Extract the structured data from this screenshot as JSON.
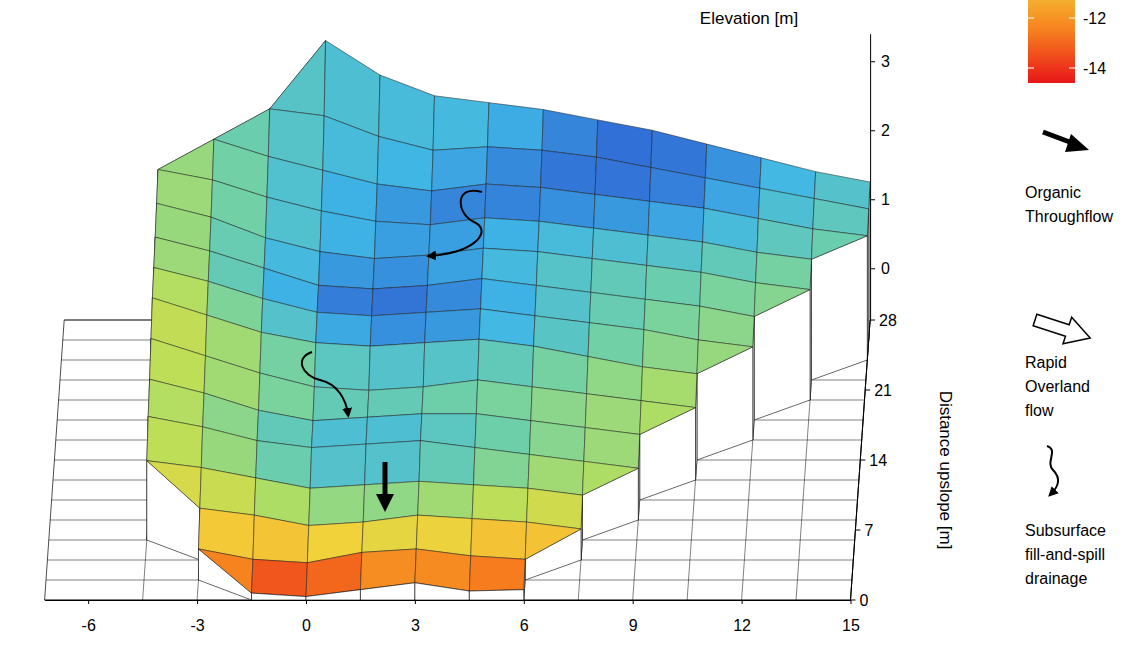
{
  "chart_data": {
    "type": "surface",
    "zlabel": "Elevation [m]",
    "ylabel": "Distance upslope [m]",
    "xlim": [
      -7.2,
      15
    ],
    "xticks": [
      -6,
      -3,
      0,
      3,
      6,
      9,
      12,
      15
    ],
    "ylim": [
      0,
      28
    ],
    "yticks": [
      0,
      7,
      14,
      21,
      28
    ],
    "zlim": [
      -0.75,
      3.4
    ],
    "zticks": [
      0,
      1,
      2,
      3
    ],
    "x": [
      -4.5,
      -3,
      -1.5,
      0,
      1.5,
      3,
      4.5,
      6,
      7.5,
      9,
      10.5,
      12,
      13.5,
      15
    ],
    "y": [
      0,
      2,
      4,
      6,
      8,
      10,
      12,
      14,
      16,
      18,
      20,
      22,
      24,
      26,
      28
    ],
    "z": [
      [
        null,
        null,
        -0.65,
        -0.7,
        -0.6,
        -0.5,
        -0.62,
        -0.6,
        null,
        null,
        null,
        null,
        null,
        null
      ],
      [
        null,
        -0.3,
        -0.45,
        -0.5,
        -0.35,
        -0.3,
        -0.4,
        -0.45,
        null,
        null,
        null,
        null,
        null,
        null
      ],
      [
        null,
        0.0,
        -0.1,
        -0.25,
        -0.2,
        -0.1,
        -0.15,
        -0.2,
        -0.3,
        null,
        null,
        null,
        null,
        null
      ],
      [
        0.4,
        0.3,
        0.15,
        0.0,
        0.05,
        0.1,
        0.05,
        0.0,
        -0.1,
        null,
        null,
        null,
        null,
        null
      ],
      [
        0.75,
        0.6,
        0.4,
        0.3,
        0.35,
        0.4,
        0.3,
        0.2,
        0.1,
        0.0,
        null,
        null,
        null,
        null
      ],
      [
        1.0,
        0.8,
        0.55,
        0.4,
        0.45,
        0.5,
        0.5,
        0.4,
        0.3,
        0.2,
        null,
        null,
        null,
        null
      ],
      [
        1.3,
        1.05,
        0.8,
        0.6,
        0.55,
        0.6,
        0.7,
        0.6,
        0.5,
        0.4,
        0.3,
        null,
        null,
        null
      ],
      [
        1.6,
        1.35,
        1.1,
        0.95,
        0.9,
        0.95,
        1.0,
        0.9,
        0.75,
        0.6,
        0.5,
        null,
        null,
        null
      ],
      [
        1.75,
        1.55,
        1.3,
        1.1,
        1.05,
        1.1,
        1.15,
        1.05,
        0.95,
        0.85,
        0.7,
        0.6,
        null,
        null
      ],
      [
        1.9,
        1.7,
        1.45,
        1.2,
        1.15,
        1.2,
        1.3,
        1.2,
        1.1,
        1.0,
        0.9,
        0.75,
        null,
        null
      ],
      [
        2.1,
        1.9,
        1.6,
        1.4,
        1.3,
        1.35,
        1.45,
        1.4,
        1.3,
        1.2,
        1.1,
        0.95,
        0.85,
        null
      ],
      [
        2.3,
        2.15,
        1.9,
        1.7,
        1.55,
        1.5,
        1.6,
        1.55,
        1.45,
        1.35,
        1.25,
        1.1,
        1.0,
        null
      ],
      [
        null,
        2.45,
        2.2,
        2.0,
        1.8,
        1.7,
        1.8,
        1.75,
        1.65,
        1.55,
        1.45,
        1.3,
        1.15,
        1.05
      ],
      [
        null,
        null,
        2.6,
        2.5,
        2.2,
        2.0,
        2.05,
        2.0,
        1.9,
        1.75,
        1.6,
        1.45,
        1.3,
        1.15
      ],
      [
        null,
        null,
        null,
        3.3,
        2.8,
        2.5,
        2.4,
        2.3,
        2.15,
        2.0,
        1.8,
        1.6,
        1.4,
        1.25
      ]
    ],
    "color_values": [
      [
        null,
        null,
        -14.3,
        -14.5,
        -13.5,
        -12.5,
        -13.2,
        -12.8,
        null,
        null,
        null,
        null,
        null,
        null
      ],
      [
        null,
        -11,
        -12,
        -12.5,
        -11.5,
        -11.2,
        -12,
        -12.3,
        null,
        null,
        null,
        null,
        null,
        null
      ],
      [
        null,
        -10,
        -9.5,
        -9,
        -8.5,
        -8.5,
        -9,
        -9.8,
        -10.3,
        null,
        null,
        null,
        null,
        null
      ],
      [
        -9.5,
        -8.5,
        -7.5,
        -6,
        -5.5,
        -6,
        -7,
        -8,
        -8.5,
        null,
        null,
        null,
        null,
        null
      ],
      [
        -8.5,
        -7.5,
        -6,
        -4.5,
        -4,
        -4.5,
        -5.5,
        -6.5,
        -7.5,
        -8,
        null,
        null,
        null,
        null
      ],
      [
        -8.5,
        -8,
        -6.5,
        -5.5,
        -5,
        -5.5,
        -6,
        -6.5,
        -7,
        -7.5,
        null,
        null,
        null,
        null
      ],
      [
        -9,
        -8.5,
        -7.5,
        -6.5,
        -6,
        -6.5,
        -6.5,
        -7,
        -7.5,
        -8,
        -8.5,
        null,
        null,
        null
      ],
      [
        -9,
        -8,
        -6.5,
        -5,
        -4,
        -3.5,
        -4,
        -5,
        -6,
        -7,
        -7.5,
        null,
        null,
        null
      ],
      [
        -8.5,
        -7,
        -5,
        -3.5,
        -2.8,
        -3,
        -3.5,
        -4.5,
        -5.5,
        -6.5,
        -7,
        -7.5,
        null,
        null
      ],
      [
        -8,
        -6.5,
        -4.5,
        -3,
        -2.5,
        -2.8,
        -3.5,
        -4.5,
        -5.5,
        -6,
        -6.5,
        -7,
        null,
        null
      ],
      [
        -8,
        -7,
        -5.5,
        -4.5,
        -4,
        -4,
        -4.5,
        -5,
        -5.5,
        -5.5,
        -6,
        -6.5,
        -7,
        null
      ],
      [
        -8,
        -7,
        -5.5,
        -4,
        -3.5,
        -3,
        -3,
        -3.5,
        -4,
        -4,
        -4.5,
        -5.5,
        -6.5,
        null
      ],
      [
        null,
        -7,
        -5.5,
        -4.5,
        -4,
        -3.5,
        -3,
        -2.8,
        -3,
        -3,
        -3.5,
        -4.5,
        -5.5,
        -6
      ],
      [
        null,
        null,
        -5.5,
        -5,
        -4.5,
        -4.5,
        -4,
        -3,
        -2.5,
        -2.5,
        -3,
        -4,
        -5,
        -5.5
      ],
      [
        null,
        null,
        null,
        -5,
        -4.5,
        -4.5,
        -4.5,
        -4,
        -3,
        -2.8,
        -3,
        -3.5,
        -4.5,
        -5
      ]
    ],
    "colorbar": {
      "lim": [
        -14.6,
        -2
      ],
      "ticks": [
        -12,
        -14
      ]
    },
    "legend": "right",
    "legend_items": [
      {
        "label": "Organic Throughflow",
        "marker": "solid-arrow"
      },
      {
        "label": "Rapid Overland flow",
        "marker": "hollow-arrow"
      },
      {
        "label": "Subsurface fill-and-spill drainage",
        "marker": "curly-arrow"
      }
    ]
  }
}
